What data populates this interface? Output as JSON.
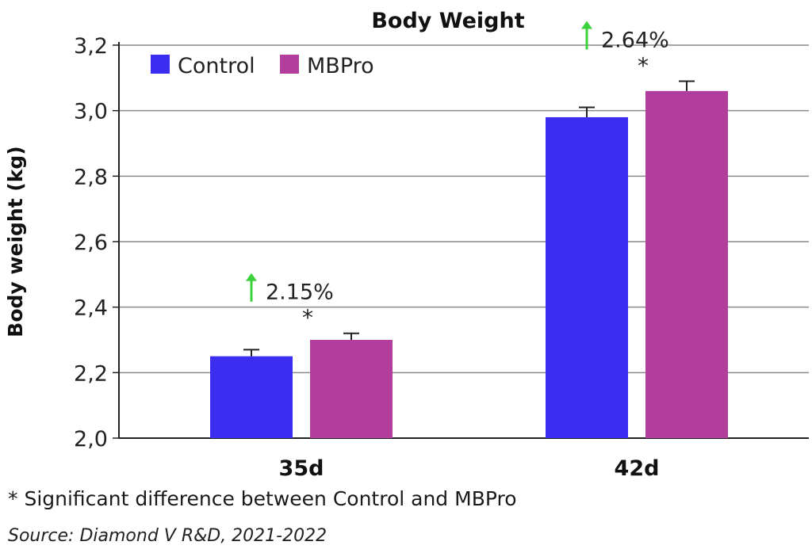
{
  "chart_data": {
    "type": "bar",
    "title": "Body Weight",
    "ylabel": "Body weight (kg)",
    "xlabel": "",
    "categories": [
      "35d",
      "42d"
    ],
    "ylim": [
      2.0,
      3.2
    ],
    "yticks": [
      "2,0",
      "2,2",
      "2,4",
      "2,6",
      "2,8",
      "3,0",
      "3,2"
    ],
    "grid": true,
    "legend_position": "top-left",
    "series": [
      {
        "name": "Control",
        "color": "#3b2ef0",
        "values": [
          2.25,
          2.98
        ],
        "errors": [
          0.02,
          0.03
        ]
      },
      {
        "name": "MBPro",
        "color": "#b33d9c",
        "values": [
          2.3,
          3.06
        ],
        "errors": [
          0.02,
          0.03
        ]
      }
    ],
    "annotations": [
      {
        "category": "35d",
        "increase": "2.15%",
        "significance": "*",
        "arrow_color": "#3ad13a"
      },
      {
        "category": "42d",
        "increase": "2.64%",
        "significance": "*",
        "arrow_color": "#3ad13a"
      }
    ]
  },
  "footnote": "* Significant difference between Control and MBPro",
  "source": "Source: Diamond V R&D, 2021-2022"
}
